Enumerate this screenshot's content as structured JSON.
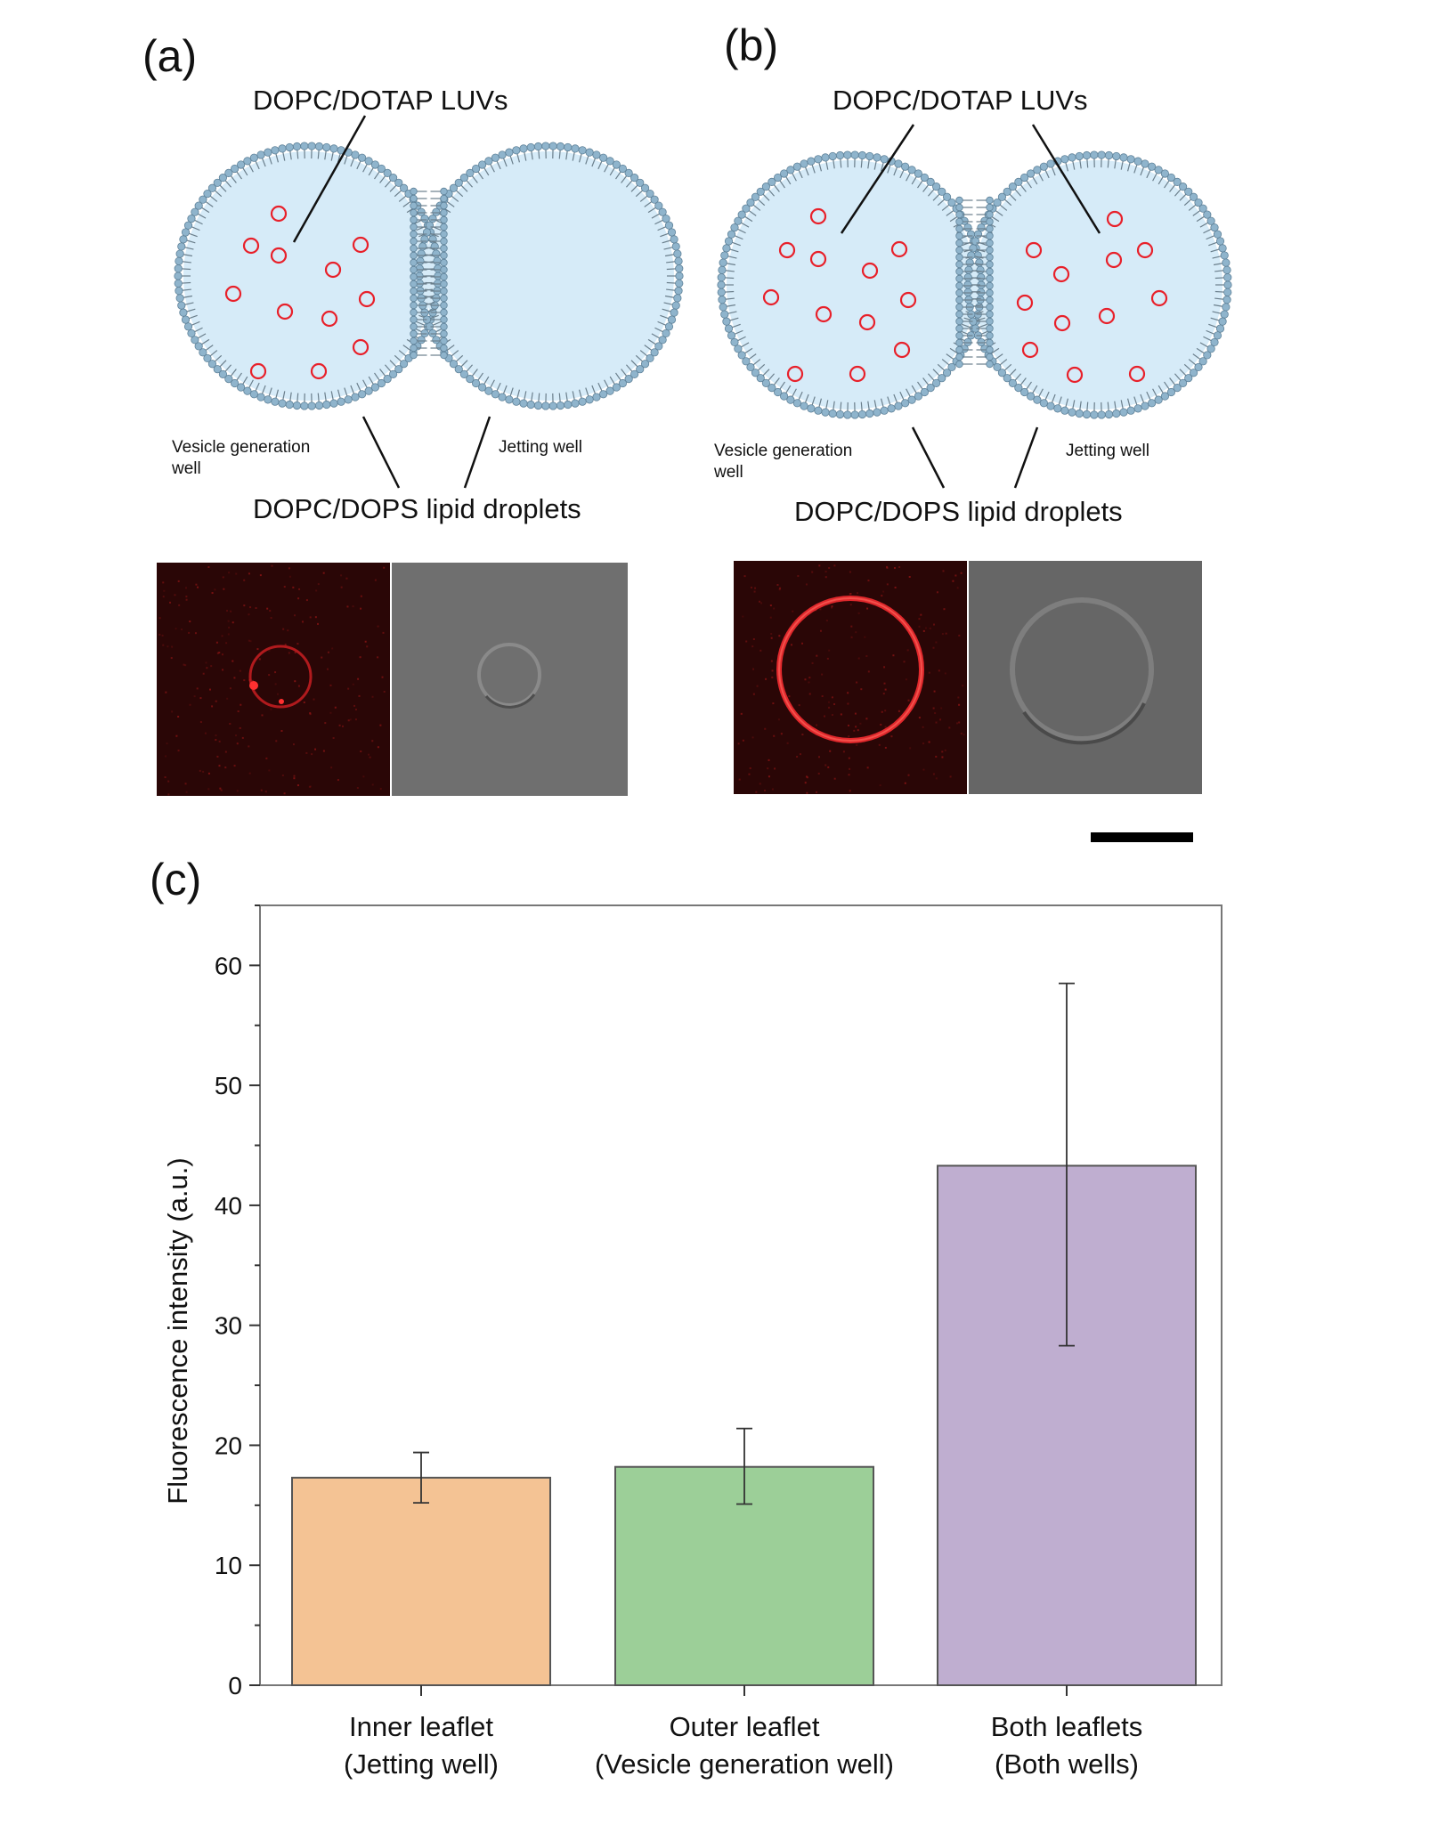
{
  "panels": {
    "a": {
      "label": "(a)",
      "luv_label": "DOPC/DOTAP LUVs",
      "vesicle_well_label": [
        "Vesicle generation",
        "well"
      ],
      "jetting_well_label": "Jetting well",
      "droplet_label": "DOPC/DOPS lipid droplets"
    },
    "b": {
      "label": "(b)",
      "luv_label": "DOPC/DOTAP LUVs",
      "vesicle_well_label": [
        "Vesicle generation",
        "well"
      ],
      "jetting_well_label": "Jetting well",
      "droplet_label": "DOPC/DOPS lipid droplets"
    },
    "c": {
      "label": "(c)"
    }
  },
  "colors": {
    "droplet_fill": "#d6ebf8",
    "lipid_head": "#8fb4cc",
    "luv_red": "#e8202a",
    "bar_inner": "#f4c394",
    "bar_outer": "#9ccf98",
    "bar_both": "#bfaed0",
    "micro_red_bg": "#2a0606",
    "micro_ring": "#e0282c",
    "dic_bg": "#6b6b6b"
  },
  "chart_data": {
    "type": "bar",
    "categories": [
      [
        "Inner leaflet",
        "(Jetting well)"
      ],
      [
        "Outer leaflet",
        "(Vesicle generation well)"
      ],
      [
        "Both leaflets",
        "(Both wells)"
      ]
    ],
    "values": [
      17.3,
      18.2,
      43.3
    ],
    "error_low": [
      15.2,
      15.1,
      28.3
    ],
    "error_high": [
      19.4,
      21.4,
      58.5
    ],
    "ylabel": "Fluorescence intensity (a.u.)",
    "xlabel": "",
    "ylim": [
      0,
      65
    ],
    "yticks": [
      0,
      10,
      20,
      30,
      40,
      50,
      60
    ],
    "grid": false
  }
}
